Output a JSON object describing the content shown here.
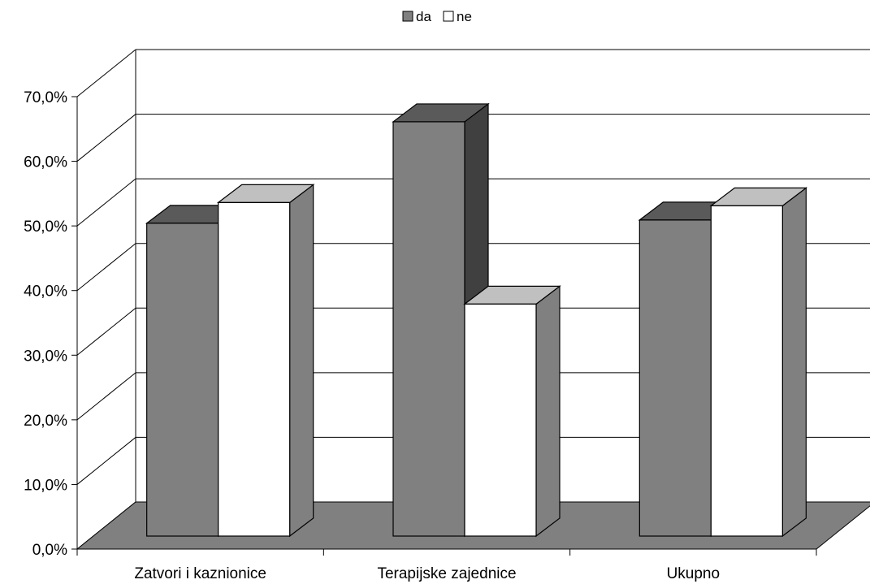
{
  "chart_data": {
    "type": "bar",
    "categories": [
      "Zatvori i kaznionice",
      "Terapijske zajednice",
      "Ukupno"
    ],
    "series": [
      {
        "name": "da",
        "values": [
          48.4,
          64.1,
          48.9
        ],
        "color": "#808080"
      },
      {
        "name": "ne",
        "values": [
          51.6,
          35.9,
          51.1
        ],
        "color": "#ffffff"
      }
    ],
    "ylim": [
      0,
      70
    ],
    "yticks": [
      "0,0%",
      "10,0%",
      "20,0%",
      "30,0%",
      "40,0%",
      "50,0%",
      "60,0%",
      "70,0%"
    ],
    "legend_position": "top-center",
    "grid": true,
    "projection": "3d"
  }
}
